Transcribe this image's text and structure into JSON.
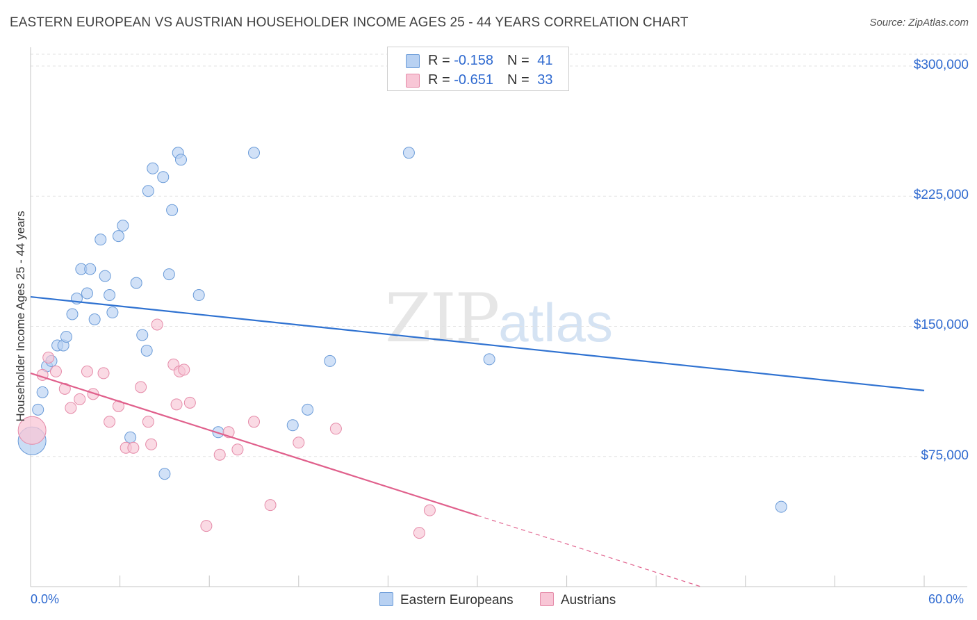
{
  "title": "EASTERN EUROPEAN VS AUSTRIAN HOUSEHOLDER INCOME AGES 25 - 44 YEARS CORRELATION CHART",
  "source": "Source: ZipAtlas.com",
  "watermark": {
    "zip": "ZIP",
    "atlas": "atlas"
  },
  "legend": {
    "series1": {
      "r_label": "R = ",
      "r_value": "-0.158",
      "n_label": "N = ",
      "n_value": "41"
    },
    "series2": {
      "r_label": "R = ",
      "r_value": "-0.651",
      "n_label": "N = ",
      "n_value": "33"
    }
  },
  "colors": {
    "blue_fill": "#b8d1f2",
    "blue_stroke": "#6a9bd8",
    "blue_line": "#2f72d1",
    "pink_fill": "#f8c6d6",
    "pink_stroke": "#e58aa8",
    "pink_line": "#e0608c",
    "tick_text": "#2f6ad0",
    "grid": "#e2e2e2"
  },
  "chart_data": {
    "type": "scatter",
    "title": "EASTERN EUROPEAN VS AUSTRIAN HOUSEHOLDER INCOME AGES 25 - 44 YEARS CORRELATION CHART",
    "xlabel": "",
    "ylabel": "Householder Income Ages 25 - 44 years",
    "xlim": [
      0,
      60
    ],
    "ylim": [
      0,
      310000
    ],
    "x_tick_labels": [
      "0.0%",
      "60.0%"
    ],
    "y_ticks": [
      {
        "value": 75000,
        "label": "$75,000"
      },
      {
        "value": 150000,
        "label": "$150,000"
      },
      {
        "value": 225000,
        "label": "$225,000"
      },
      {
        "value": 300000,
        "label": "$300,000"
      }
    ],
    "grid": true,
    "legend_position": "top-center",
    "series": [
      {
        "name": "Eastern Europeans",
        "color": "blue",
        "trend": {
          "x": [
            0,
            60
          ],
          "y": [
            167000,
            113000
          ]
        },
        "points": [
          [
            0.1,
            84000
          ],
          [
            0.5,
            102000
          ],
          [
            0.8,
            112000
          ],
          [
            1.1,
            127000
          ],
          [
            1.4,
            130000
          ],
          [
            1.8,
            139000
          ],
          [
            2.2,
            139000
          ],
          [
            2.4,
            144000
          ],
          [
            2.8,
            157000
          ],
          [
            3.1,
            166000
          ],
          [
            3.4,
            183000
          ],
          [
            3.8,
            169000
          ],
          [
            4.0,
            183000
          ],
          [
            4.3,
            154000
          ],
          [
            4.7,
            200000
          ],
          [
            5.0,
            179000
          ],
          [
            5.3,
            168000
          ],
          [
            5.5,
            158000
          ],
          [
            5.9,
            202000
          ],
          [
            6.2,
            208000
          ],
          [
            6.7,
            86000
          ],
          [
            7.1,
            175000
          ],
          [
            7.5,
            145000
          ],
          [
            7.8,
            136000
          ],
          [
            7.9,
            228000
          ],
          [
            8.2,
            241000
          ],
          [
            8.9,
            236000
          ],
          [
            9.0,
            65000
          ],
          [
            9.3,
            180000
          ],
          [
            9.5,
            217000
          ],
          [
            9.9,
            250000
          ],
          [
            10.1,
            246000
          ],
          [
            11.3,
            168000
          ],
          [
            12.6,
            89000
          ],
          [
            15.0,
            250000
          ],
          [
            17.6,
            93000
          ],
          [
            18.6,
            102000
          ],
          [
            20.1,
            130000
          ],
          [
            25.4,
            250000
          ],
          [
            30.8,
            131000
          ],
          [
            50.4,
            46000
          ]
        ]
      },
      {
        "name": "Austrians",
        "color": "pink",
        "trend": {
          "x": [
            0,
            30
          ],
          "y": [
            123000,
            41000
          ]
        },
        "trend_extension": {
          "x": [
            30,
            45
          ],
          "y": [
            41000,
            0
          ]
        },
        "points": [
          [
            0.1,
            90000
          ],
          [
            0.8,
            122000
          ],
          [
            1.2,
            132000
          ],
          [
            1.7,
            124000
          ],
          [
            2.3,
            114000
          ],
          [
            2.7,
            103000
          ],
          [
            3.3,
            108000
          ],
          [
            3.8,
            124000
          ],
          [
            4.2,
            111000
          ],
          [
            4.9,
            123000
          ],
          [
            5.3,
            95000
          ],
          [
            5.9,
            104000
          ],
          [
            6.4,
            80000
          ],
          [
            6.9,
            80000
          ],
          [
            7.4,
            115000
          ],
          [
            7.9,
            95000
          ],
          [
            8.1,
            82000
          ],
          [
            8.5,
            151000
          ],
          [
            9.6,
            128000
          ],
          [
            9.8,
            105000
          ],
          [
            10.0,
            124000
          ],
          [
            10.3,
            125000
          ],
          [
            10.7,
            106000
          ],
          [
            11.8,
            35000
          ],
          [
            12.7,
            76000
          ],
          [
            13.3,
            89000
          ],
          [
            13.9,
            79000
          ],
          [
            15.0,
            95000
          ],
          [
            16.1,
            47000
          ],
          [
            18.0,
            83000
          ],
          [
            20.5,
            91000
          ],
          [
            26.1,
            31000
          ],
          [
            26.8,
            44000
          ]
        ]
      }
    ]
  }
}
